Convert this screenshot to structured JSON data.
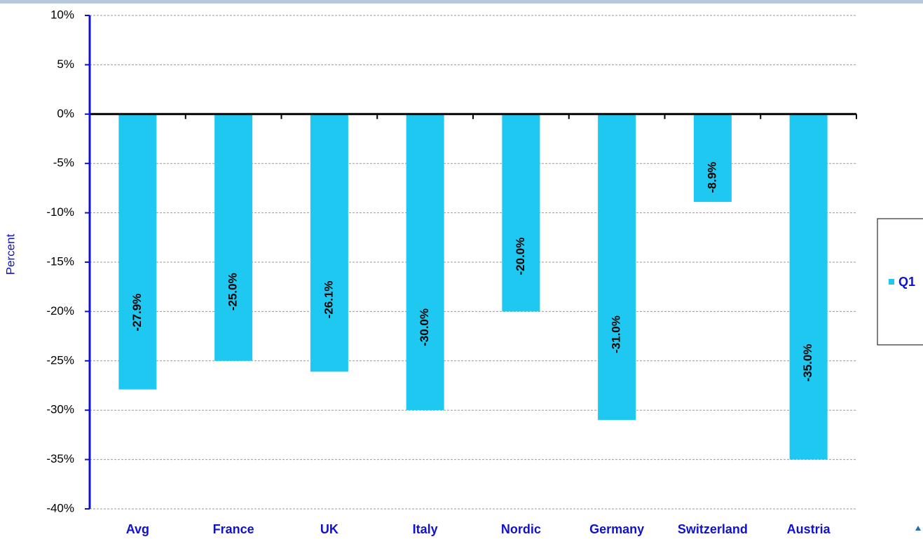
{
  "chart_data": {
    "type": "bar",
    "y_label": "Percent",
    "categories": [
      "Avg",
      "France",
      "UK",
      "Italy",
      "Nordic",
      "Germany",
      "Switzerland",
      "Austria"
    ],
    "series": [
      {
        "name": "Q1",
        "color": "#1fc8f0",
        "values": [
          -27.9,
          -25.0,
          -26.1,
          -30.0,
          -20.0,
          -31.0,
          -8.9,
          -35.0
        ],
        "value_labels": [
          "-27.9%",
          "-25.0%",
          "-26.1%",
          "-30.0%",
          "-20.0%",
          "-31.0%",
          "-8.9%",
          "-35.0%"
        ]
      }
    ],
    "ylim": [
      -40,
      10
    ],
    "yticks": [
      {
        "value": -40,
        "label": "-40%"
      },
      {
        "value": -35,
        "label": "-35%"
      },
      {
        "value": -30,
        "label": "-30%"
      },
      {
        "value": -25,
        "label": "-25%"
      },
      {
        "value": -20,
        "label": "-20%"
      },
      {
        "value": -15,
        "label": "-15%"
      },
      {
        "value": -10,
        "label": "-10%"
      },
      {
        "value": -5,
        "label": "-5%"
      },
      {
        "value": 0,
        "label": "0%"
      },
      {
        "value": 5,
        "label": "5%"
      },
      {
        "value": 10,
        "label": "10%"
      }
    ],
    "grid": true,
    "legend": "right"
  }
}
